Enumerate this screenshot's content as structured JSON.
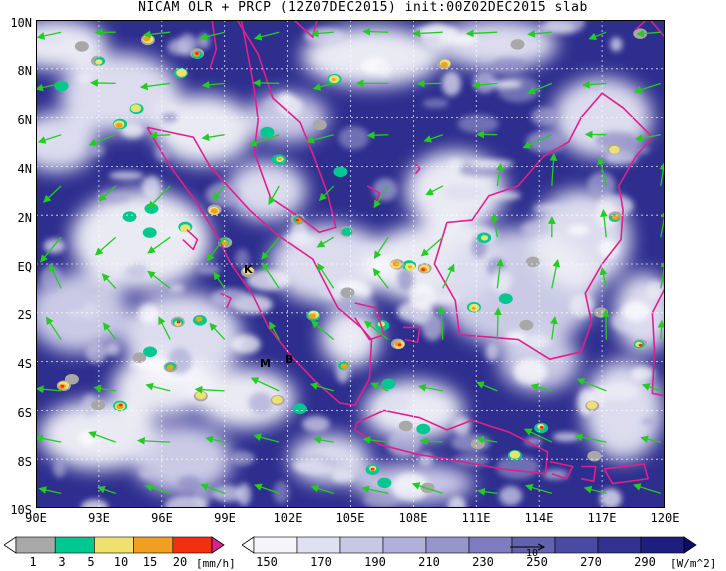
{
  "title": "NICAM OLR + PRCP (12Z07DEC2015) init:00Z02DEC2015 slab",
  "map": {
    "lat_labels": [
      "10N",
      "8N",
      "6N",
      "4N",
      "2N",
      "EQ",
      "2S",
      "4S",
      "6S",
      "8S",
      "10S"
    ],
    "lon_labels": [
      "90E",
      "93E",
      "96E",
      "99E",
      "102E",
      "105E",
      "108E",
      "111E",
      "114E",
      "117E",
      "120E"
    ],
    "lon_range": [
      90,
      120
    ],
    "lat_range": [
      -10,
      10
    ],
    "place_labels": [
      {
        "text": "K",
        "lon": 99.9,
        "lat": -0.2
      },
      {
        "text": "M",
        "lon": 100.7,
        "lat": -3.9
      },
      {
        "text": "B",
        "lon": 101.8,
        "lat": -3.7
      }
    ],
    "background_color": "#2e2e8f",
    "coast_color": "#e0208a",
    "wind_color": "#22cc22"
  },
  "colorbars": {
    "precip": {
      "labels": [
        "1",
        "3",
        "5",
        "10",
        "15",
        "20"
      ],
      "unit": "[mm/h]",
      "colors": [
        "#ffffff",
        "#a8a8a8",
        "#00c890",
        "#f0e070",
        "#f0a020",
        "#f03010",
        "#e0208a"
      ]
    },
    "olr": {
      "labels": [
        "150",
        "170",
        "190",
        "210",
        "230",
        "250",
        "270",
        "290"
      ],
      "unit": "[W/m^2]",
      "colors": [
        "#ffffff",
        "#f4f4fa",
        "#e0e0f0",
        "#c8c8e6",
        "#b0b0dc",
        "#9696cc",
        "#7c7cbe",
        "#6262ae",
        "#4a4aa0",
        "#32328e",
        "#1e1e7e",
        "#0c0c6c"
      ],
      "vector_ref": "10"
    }
  }
}
